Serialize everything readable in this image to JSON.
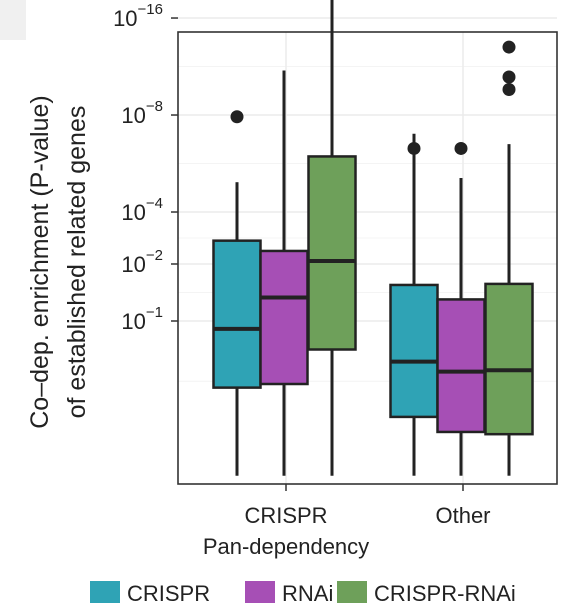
{
  "chart_data": {
    "type": "boxplot",
    "title": "",
    "ylabel_line1": "Co–dep. enrichment (P-value)",
    "ylabel_line2": "of established related genes",
    "y_scale": "log (-log10 P)",
    "y_ticks": [
      {
        "base": "10",
        "exp": "−16",
        "value": 16
      },
      {
        "base": "10",
        "exp": "−8",
        "value": 8
      },
      {
        "base": "10",
        "exp": "−4",
        "value": 4
      },
      {
        "base": "10",
        "exp": "−2",
        "value": 2
      },
      {
        "base": "10",
        "exp": "−1",
        "value": 1
      }
    ],
    "categories": [
      {
        "line1": "CRISPR",
        "line2": "Pan-dependency"
      },
      {
        "line1": "Other",
        "line2": ""
      }
    ],
    "legend": {
      "position": "bottom"
    },
    "series": [
      {
        "name": "CRISPR",
        "color": "#2fa3b5",
        "boxes": [
          {
            "whisker_low": 0.052,
            "q1": 0.28,
            "median": 0.86,
            "q3": 2.73,
            "whisker_high": 4.95,
            "outliers": [
              7.9
            ]
          },
          {
            "whisker_low": 0.052,
            "q1": 0.16,
            "median": 0.46,
            "q3": 1.55,
            "whisker_high": 7.0,
            "outliers": [
              6.3
            ]
          }
        ]
      },
      {
        "name": "RNAi",
        "color": "#a64fb5",
        "boxes": [
          {
            "whisker_low": 0.052,
            "q1": 0.3,
            "median": 1.33,
            "q3": 2.38,
            "whisker_high": 11.0,
            "outliers": []
          },
          {
            "whisker_low": 0.052,
            "q1": 0.12,
            "median": 0.38,
            "q3": 1.3,
            "whisker_high": 5.1,
            "outliers": [
              6.3
            ]
          }
        ]
      },
      {
        "name": "CRISPR-RNAi",
        "color": "#6ea05a",
        "boxes": [
          {
            "whisker_low": 0.052,
            "q1": 0.58,
            "median": 2.08,
            "q3": 5.95,
            "whisker_high": 19.5,
            "outliers": []
          },
          {
            "whisker_low": 0.052,
            "q1": 0.115,
            "median": 0.39,
            "q3": 1.57,
            "whisker_high": 6.5,
            "outliers": [
              13.0,
              10.5,
              9.6
            ]
          }
        ]
      }
    ]
  }
}
